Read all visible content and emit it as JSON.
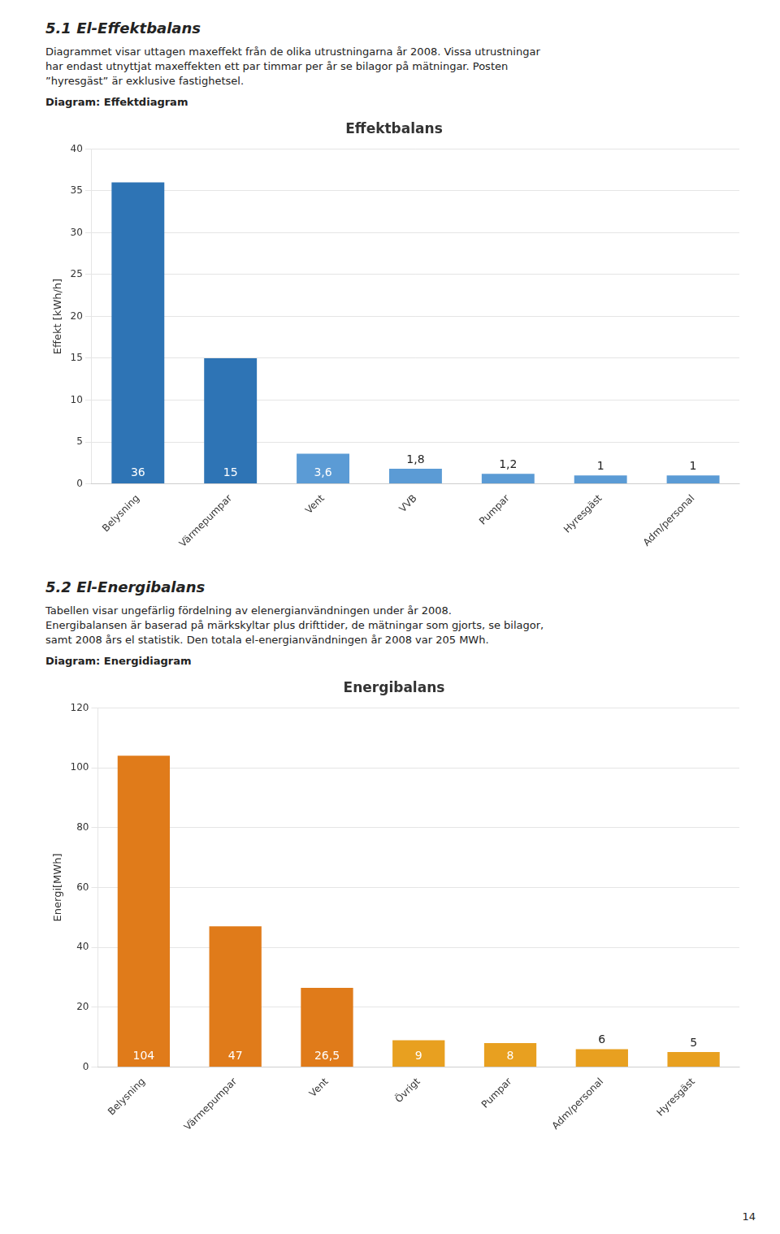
{
  "chart_data": [
    {
      "type": "bar",
      "title": "Effektbalans",
      "annotations": [
        "5.1  El-Effektbalans",
        "Diagrammet visar uttagen maxeffekt från de olika utrustningarna år 2008. Vissa utrustningar",
        "har endast utnyttjat maxeffekten ett par timmar per år se bilagor på mätningar. Posten",
        "”hyresgäst” är exklusive fastighetsel.",
        "Diagram: Effektdiagram"
      ],
      "categories": [
        "Belysning",
        "Värmepumpar",
        "Vent",
        "VVB",
        "Pumpar",
        "Hyresgäst",
        "Adm/personal"
      ],
      "values": [
        36,
        15,
        3.6,
        1.8,
        1.2,
        1,
        1
      ],
      "value_labels": [
        "36",
        "15",
        "3,6",
        "1,8",
        "1,2",
        "1",
        "1"
      ],
      "colors": [
        "#2E74B5",
        "#2E74B5",
        "#5B9BD5",
        "#5B9BD5",
        "#5B9BD5",
        "#5B9BD5",
        "#5B9BD5"
      ],
      "y_label": "Effekt [kWh/h]",
      "ylim": [
        0,
        40
      ],
      "yticks": [
        0,
        5,
        10,
        15,
        20,
        25,
        30,
        35,
        40
      ],
      "grid": true,
      "data_labels": true
    },
    {
      "type": "bar",
      "title": "Energibalans",
      "annotations": [
        "5.2  El-Energibalans",
        "Tabellen visar ungefärlig fördelning av elenergianvändningen under år 2008.",
        "Energibalansen är baserad på märkskyltar plus drifttider, de mätningar som gjorts, se bilagor,",
        "samt 2008 års el statistik. Den totala el-energianvändningen år 2008 var 205 MWh.",
        "Diagram: Energidiagram"
      ],
      "categories": [
        "Belysning",
        "Värmepumpar",
        "Vent",
        "Övrigt",
        "Pumpar",
        "Adm/personal",
        "Hyresgäst"
      ],
      "values": [
        104,
        47,
        26.5,
        9,
        8,
        6,
        5
      ],
      "value_labels": [
        "104",
        "47",
        "26,5",
        "9",
        "8",
        "6",
        "5"
      ],
      "colors": [
        "#E07B1A",
        "#E07B1A",
        "#E07B1A",
        "#E8A020",
        "#E8A020",
        "#E8A020",
        "#E8A020"
      ],
      "y_label": "Energi[MWh]",
      "ylim": [
        0,
        120
      ],
      "yticks": [
        0,
        20,
        40,
        60,
        80,
        100,
        120
      ],
      "grid": true,
      "data_labels": true
    }
  ],
  "annotations": [
    "14"
  ]
}
